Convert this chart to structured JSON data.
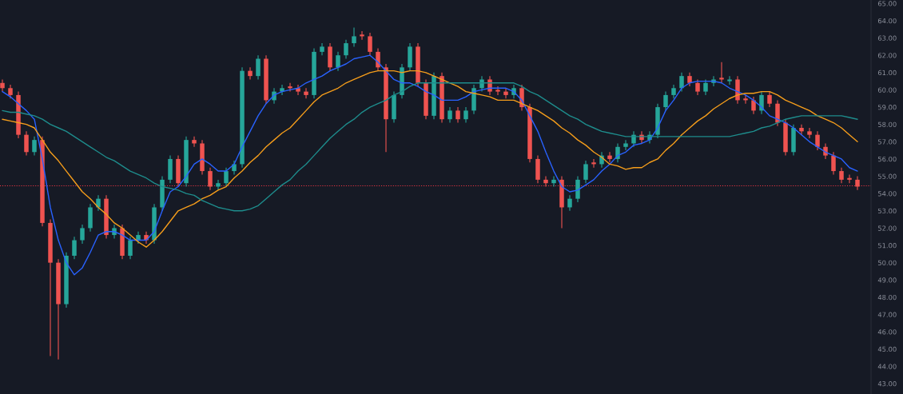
{
  "chart_data": {
    "type": "candlestick",
    "categories": [
      null,
      null,
      null,
      null,
      null,
      null,
      null,
      null,
      null,
      null,
      null,
      null,
      null,
      null,
      null,
      null,
      null,
      null,
      null,
      null,
      null,
      null,
      null,
      null,
      null,
      null,
      null,
      null,
      null,
      null,
      null,
      null,
      null,
      null,
      null,
      null,
      null,
      null,
      null,
      null,
      null,
      null,
      null,
      null,
      null,
      null,
      null,
      null,
      null,
      null,
      null,
      null,
      null,
      null,
      null,
      null,
      null,
      null,
      null,
      null,
      null,
      null,
      null,
      null,
      null,
      null,
      null,
      null,
      null,
      null,
      null,
      null,
      null,
      null,
      null,
      null,
      null,
      null,
      null,
      null,
      null,
      null,
      null,
      null,
      null,
      null,
      null,
      null,
      null,
      null,
      null,
      null,
      null,
      null,
      null,
      null,
      null,
      null,
      null,
      null,
      null,
      null,
      null,
      null,
      null,
      null,
      null,
      null
    ],
    "ohlc": [
      [
        60.4,
        60.6,
        59.9,
        60.1
      ],
      [
        60.1,
        60.3,
        59.5,
        59.7
      ],
      [
        59.7,
        59.9,
        57.2,
        57.4
      ],
      [
        57.4,
        57.6,
        56.2,
        56.4
      ],
      [
        56.4,
        57.3,
        56.2,
        57.1
      ],
      [
        57.1,
        57.3,
        52.1,
        52.3
      ],
      [
        52.3,
        52.5,
        44.6,
        50.0
      ],
      [
        50.0,
        50.2,
        44.4,
        47.6
      ],
      [
        47.6,
        50.6,
        47.4,
        50.4
      ],
      [
        50.4,
        51.5,
        50.2,
        51.3
      ],
      [
        51.3,
        52.2,
        51.1,
        52.0
      ],
      [
        52.0,
        53.4,
        51.8,
        53.2
      ],
      [
        53.2,
        53.9,
        53.0,
        53.7
      ],
      [
        53.7,
        53.9,
        51.4,
        51.6
      ],
      [
        51.6,
        52.2,
        51.4,
        52.0
      ],
      [
        52.0,
        52.2,
        50.2,
        50.4
      ],
      [
        50.4,
        51.5,
        50.2,
        51.3
      ],
      [
        51.3,
        51.8,
        51.1,
        51.6
      ],
      [
        51.6,
        51.8,
        51.1,
        51.3
      ],
      [
        51.3,
        53.4,
        51.1,
        53.2
      ],
      [
        53.2,
        55.0,
        53.0,
        54.8
      ],
      [
        54.8,
        56.2,
        54.6,
        56.0
      ],
      [
        56.0,
        56.2,
        54.4,
        54.6
      ],
      [
        54.6,
        57.3,
        54.4,
        57.1
      ],
      [
        57.1,
        57.3,
        56.7,
        56.9
      ],
      [
        56.9,
        57.1,
        55.1,
        55.3
      ],
      [
        55.3,
        55.5,
        54.2,
        54.4
      ],
      [
        54.4,
        54.8,
        54.2,
        54.6
      ],
      [
        54.6,
        55.5,
        54.4,
        55.3
      ],
      [
        55.3,
        55.9,
        55.1,
        55.7
      ],
      [
        55.7,
        61.3,
        55.5,
        61.1
      ],
      [
        61.1,
        61.3,
        60.6,
        60.8
      ],
      [
        60.8,
        62.0,
        60.6,
        61.8
      ],
      [
        61.8,
        62.0,
        59.2,
        59.4
      ],
      [
        59.4,
        60.1,
        59.2,
        59.9
      ],
      [
        59.9,
        60.3,
        59.7,
        60.1
      ],
      [
        60.2,
        60.4,
        59.9,
        60.1
      ],
      [
        60.1,
        60.3,
        59.7,
        59.9
      ],
      [
        59.9,
        60.1,
        59.5,
        59.7
      ],
      [
        59.7,
        62.4,
        59.5,
        62.2
      ],
      [
        62.2,
        62.7,
        62.0,
        62.5
      ],
      [
        62.5,
        62.7,
        61.1,
        61.3
      ],
      [
        61.3,
        62.2,
        61.1,
        62.0
      ],
      [
        62.0,
        62.9,
        61.8,
        62.7
      ],
      [
        62.7,
        63.6,
        62.5,
        63.1
      ],
      [
        63.2,
        63.4,
        62.9,
        63.1
      ],
      [
        63.1,
        63.3,
        62.0,
        62.2
      ],
      [
        62.2,
        62.4,
        61.1,
        61.3
      ],
      [
        61.3,
        61.5,
        56.4,
        58.3
      ],
      [
        58.3,
        59.9,
        58.1,
        59.7
      ],
      [
        59.7,
        61.5,
        59.5,
        61.3
      ],
      [
        61.3,
        62.7,
        61.1,
        62.5
      ],
      [
        62.5,
        62.7,
        60.2,
        60.4
      ],
      [
        60.4,
        60.6,
        58.3,
        58.5
      ],
      [
        58.5,
        61.0,
        58.3,
        60.8
      ],
      [
        60.8,
        61.0,
        58.1,
        58.3
      ],
      [
        58.3,
        59.0,
        58.1,
        58.8
      ],
      [
        58.8,
        59.0,
        58.1,
        58.3
      ],
      [
        58.3,
        59.0,
        58.1,
        58.8
      ],
      [
        58.8,
        60.3,
        58.6,
        60.1
      ],
      [
        60.1,
        60.8,
        59.9,
        60.6
      ],
      [
        60.6,
        60.8,
        59.7,
        59.9
      ],
      [
        60.0,
        60.2,
        59.7,
        59.9
      ],
      [
        59.9,
        60.1,
        59.5,
        59.7
      ],
      [
        59.7,
        60.3,
        59.5,
        60.1
      ],
      [
        60.1,
        60.3,
        58.8,
        59.0
      ],
      [
        59.0,
        59.2,
        55.8,
        56.0
      ],
      [
        56.0,
        56.2,
        54.6,
        54.8
      ],
      [
        54.8,
        55.0,
        54.4,
        54.6
      ],
      [
        54.6,
        55.0,
        54.4,
        54.8
      ],
      [
        54.8,
        55.0,
        52.0,
        53.2
      ],
      [
        53.2,
        53.9,
        53.0,
        53.7
      ],
      [
        53.7,
        55.0,
        53.5,
        54.8
      ],
      [
        54.8,
        55.9,
        54.6,
        55.7
      ],
      [
        55.8,
        56.0,
        55.5,
        55.7
      ],
      [
        55.7,
        56.4,
        55.5,
        56.2
      ],
      [
        56.2,
        56.4,
        55.8,
        56.0
      ],
      [
        56.0,
        56.9,
        55.8,
        56.7
      ],
      [
        56.7,
        57.1,
        56.5,
        56.9
      ],
      [
        56.9,
        57.6,
        56.7,
        57.4
      ],
      [
        57.4,
        57.6,
        56.9,
        57.1
      ],
      [
        57.1,
        57.6,
        56.9,
        57.4
      ],
      [
        57.4,
        59.2,
        57.2,
        59.0
      ],
      [
        59.0,
        59.9,
        58.8,
        59.7
      ],
      [
        59.7,
        60.3,
        59.5,
        60.1
      ],
      [
        60.1,
        61.0,
        59.9,
        60.8
      ],
      [
        60.8,
        61.0,
        60.2,
        60.4
      ],
      [
        60.4,
        60.6,
        59.7,
        59.9
      ],
      [
        59.9,
        60.6,
        59.7,
        60.4
      ],
      [
        60.4,
        60.8,
        60.2,
        60.6
      ],
      [
        60.7,
        61.6,
        60.4,
        60.6
      ],
      [
        60.5,
        60.8,
        60.3,
        60.6
      ],
      [
        60.6,
        60.8,
        59.2,
        59.4
      ],
      [
        59.5,
        59.7,
        59.2,
        59.4
      ],
      [
        59.4,
        59.6,
        58.6,
        58.8
      ],
      [
        58.8,
        59.9,
        58.6,
        59.7
      ],
      [
        59.7,
        59.9,
        59.0,
        59.2
      ],
      [
        59.2,
        59.4,
        57.9,
        58.1
      ],
      [
        58.1,
        58.3,
        56.2,
        56.4
      ],
      [
        56.4,
        58.0,
        56.2,
        57.8
      ],
      [
        57.8,
        58.0,
        57.4,
        57.6
      ],
      [
        57.6,
        57.8,
        57.2,
        57.4
      ],
      [
        57.4,
        57.6,
        56.5,
        56.7
      ],
      [
        56.7,
        56.9,
        56.0,
        56.2
      ],
      [
        56.2,
        56.4,
        55.1,
        55.3
      ],
      [
        55.3,
        55.5,
        54.6,
        54.8
      ],
      [
        54.9,
        55.1,
        54.6,
        54.8
      ],
      [
        54.8,
        55.0,
        54.2,
        54.4
      ]
    ],
    "colors": [
      "#ef5350",
      "#ef5350",
      "#ef5350",
      "#ef5350",
      "#26a69a",
      "#ef5350",
      "#ef5350",
      "#ef5350",
      "#26a69a",
      "#26a69a",
      "#26a69a",
      "#26a69a",
      "#26a69a",
      "#ef5350",
      "#26a69a",
      "#ef5350",
      "#26a69a",
      "#26a69a",
      "#ef5350",
      "#26a69a",
      "#26a69a",
      "#26a69a",
      "#ef5350",
      "#26a69a",
      "#ef5350",
      "#ef5350",
      "#ef5350",
      "#26a69a",
      "#26a69a",
      "#26a69a",
      "#26a69a",
      "#ef5350",
      "#26a69a",
      "#ef5350",
      "#26a69a",
      "#26a69a",
      "#ef5350",
      "#ef5350",
      "#ef5350",
      "#26a69a",
      "#26a69a",
      "#ef5350",
      "#26a69a",
      "#26a69a",
      "#26a69a",
      "#ef5350",
      "#ef5350",
      "#ef5350",
      "#ef5350",
      "#26a69a",
      "#26a69a",
      "#26a69a",
      "#ef5350",
      "#ef5350",
      "#26a69a",
      "#ef5350",
      "#26a69a",
      "#ef5350",
      "#26a69a",
      "#26a69a",
      "#26a69a",
      "#ef5350",
      "#ef5350",
      "#ef5350",
      "#26a69a",
      "#ef5350",
      "#ef5350",
      "#ef5350",
      "#ef5350",
      "#26a69a",
      "#ef5350",
      "#26a69a",
      "#26a69a",
      "#26a69a",
      "#ef5350",
      "#26a69a",
      "#ef5350",
      "#26a69a",
      "#26a69a",
      "#26a69a",
      "#ef5350",
      "#26a69a",
      "#26a69a",
      "#26a69a",
      "#26a69a",
      "#26a69a",
      "#ef5350",
      "#ef5350",
      "#26a69a",
      "#26a69a",
      "#ef5350",
      "#26a69a",
      "#ef5350",
      "#ef5350",
      "#ef5350",
      "#26a69a",
      "#ef5350",
      "#ef5350",
      "#ef5350",
      "#26a69a",
      "#ef5350",
      "#ef5350",
      "#ef5350",
      "#ef5350",
      "#ef5350",
      "#ef5350",
      "#ef5350",
      "#ef5350"
    ],
    "series": [
      {
        "type": "line",
        "color": "#2962ff",
        "values": [
          59.9,
          59.6,
          59.2,
          58.8,
          58.3,
          56.0,
          53.2,
          51.3,
          50.0,
          49.3,
          49.7,
          50.6,
          51.6,
          51.8,
          51.8,
          51.6,
          51.3,
          51.3,
          51.3,
          51.8,
          53.0,
          54.1,
          54.4,
          55.0,
          55.7,
          56.0,
          55.7,
          55.3,
          55.3,
          55.7,
          56.7,
          57.6,
          58.5,
          59.2,
          59.7,
          59.9,
          60.0,
          60.1,
          60.4,
          60.6,
          60.8,
          61.1,
          61.3,
          61.5,
          61.8,
          61.9,
          62.0,
          61.6,
          61.1,
          60.6,
          60.4,
          60.4,
          60.2,
          59.9,
          59.7,
          59.4,
          59.4,
          59.4,
          59.6,
          59.9,
          60.0,
          60.1,
          60.1,
          60.1,
          59.9,
          59.4,
          58.5,
          57.6,
          56.4,
          55.3,
          54.4,
          54.1,
          54.2,
          54.5,
          54.8,
          55.3,
          55.7,
          56.2,
          56.4,
          56.8,
          56.9,
          57.1,
          57.8,
          58.8,
          59.4,
          60.1,
          60.4,
          60.5,
          60.5,
          60.5,
          60.4,
          60.1,
          59.9,
          59.7,
          59.4,
          59.0,
          58.5,
          58.3,
          58.1,
          57.8,
          57.4,
          57.0,
          56.7,
          56.4,
          56.2,
          56.0,
          55.5,
          55.3
        ]
      },
      {
        "type": "line",
        "color": "#f59d1b",
        "values": [
          58.3,
          58.2,
          58.1,
          58.0,
          57.8,
          57.1,
          56.4,
          55.9,
          55.3,
          54.7,
          54.1,
          53.7,
          53.2,
          52.8,
          52.3,
          52.0,
          51.6,
          51.2,
          50.9,
          51.3,
          51.8,
          52.4,
          53.0,
          53.2,
          53.4,
          53.7,
          53.9,
          54.2,
          54.4,
          54.9,
          55.3,
          55.8,
          56.2,
          56.7,
          57.1,
          57.5,
          57.8,
          58.3,
          58.8,
          59.3,
          59.7,
          59.9,
          60.1,
          60.4,
          60.6,
          60.8,
          61.0,
          61.1,
          61.1,
          61.1,
          61.0,
          61.1,
          61.1,
          61.0,
          60.8,
          60.6,
          60.4,
          60.2,
          59.9,
          59.8,
          59.7,
          59.6,
          59.4,
          59.4,
          59.4,
          59.2,
          59.0,
          58.8,
          58.5,
          58.2,
          57.8,
          57.5,
          57.1,
          56.8,
          56.4,
          56.1,
          55.7,
          55.6,
          55.4,
          55.5,
          55.5,
          55.8,
          56.0,
          56.5,
          56.9,
          57.4,
          57.8,
          58.2,
          58.5,
          58.9,
          59.2,
          59.5,
          59.7,
          59.8,
          59.8,
          59.9,
          59.9,
          59.7,
          59.4,
          59.2,
          59.0,
          58.8,
          58.5,
          58.3,
          58.1,
          57.8,
          57.4,
          57.0
        ]
      },
      {
        "type": "line",
        "color": "#1e8c8c",
        "values": [
          58.8,
          58.7,
          58.7,
          58.6,
          58.5,
          58.3,
          58.0,
          57.8,
          57.6,
          57.3,
          57.0,
          56.7,
          56.4,
          56.1,
          55.9,
          55.6,
          55.3,
          55.1,
          54.9,
          54.6,
          54.4,
          54.3,
          54.2,
          54.0,
          53.9,
          53.6,
          53.4,
          53.2,
          53.1,
          53.0,
          53.0,
          53.1,
          53.3,
          53.7,
          54.1,
          54.5,
          54.8,
          55.3,
          55.7,
          56.2,
          56.7,
          57.2,
          57.6,
          58.0,
          58.3,
          58.7,
          59.0,
          59.2,
          59.4,
          59.7,
          59.9,
          60.2,
          60.4,
          60.4,
          60.4,
          60.4,
          60.4,
          60.4,
          60.4,
          60.4,
          60.4,
          60.4,
          60.4,
          60.4,
          60.4,
          60.2,
          59.9,
          59.7,
          59.4,
          59.1,
          58.8,
          58.5,
          58.3,
          58.0,
          57.8,
          57.6,
          57.5,
          57.4,
          57.3,
          57.3,
          57.3,
          57.3,
          57.3,
          57.3,
          57.3,
          57.3,
          57.3,
          57.3,
          57.3,
          57.3,
          57.3,
          57.3,
          57.4,
          57.5,
          57.6,
          57.8,
          57.9,
          58.1,
          58.3,
          58.4,
          58.5,
          58.5,
          58.5,
          58.5,
          58.5,
          58.5,
          58.4,
          58.3
        ]
      }
    ],
    "ylim": [
      42.4,
      65.2
    ],
    "yticks": [
      {
        "value": 43,
        "label": "43.00"
      },
      {
        "value": 44,
        "label": "44.00"
      },
      {
        "value": 45,
        "label": "45.00"
      },
      {
        "value": 46,
        "label": "46.00"
      },
      {
        "value": 47,
        "label": "47.00"
      },
      {
        "value": 48,
        "label": "48.00"
      },
      {
        "value": 49,
        "label": "49.00"
      },
      {
        "value": 50,
        "label": "50.00"
      },
      {
        "value": 51,
        "label": "51.00"
      },
      {
        "value": 52,
        "label": "52.00"
      },
      {
        "value": 53,
        "label": "53.00"
      },
      {
        "value": 54,
        "label": "54.00"
      },
      {
        "value": 55,
        "label": "55.00"
      },
      {
        "value": 56,
        "label": "56.00"
      },
      {
        "value": 57,
        "label": "57.00"
      },
      {
        "value": 58,
        "label": "58.00"
      },
      {
        "value": 59,
        "label": "59.00"
      },
      {
        "value": 60,
        "label": "60.00"
      },
      {
        "value": 61,
        "label": "61.00"
      },
      {
        "value": 62,
        "label": "62.00"
      },
      {
        "value": 63,
        "label": "63.00"
      },
      {
        "value": 64,
        "label": "64.00"
      },
      {
        "value": 65,
        "label": "65.00"
      }
    ],
    "ref_lines": [
      {
        "axis": "y",
        "value": 54.45,
        "color": "#f23645",
        "line_style": "dotted"
      }
    ],
    "tick_labels": "y",
    "grid": false
  }
}
